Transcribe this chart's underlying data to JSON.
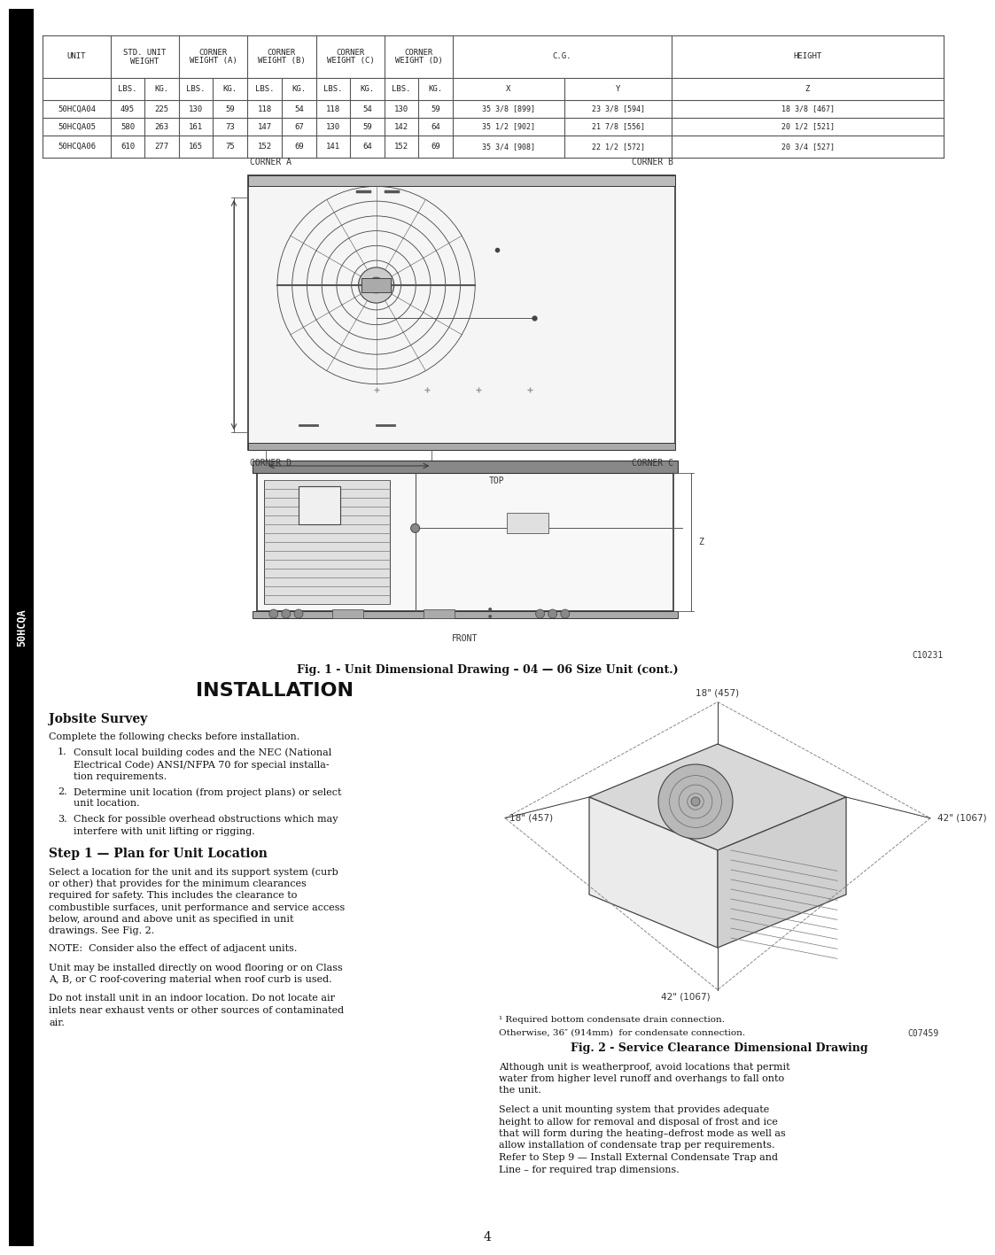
{
  "page_background": "#ffffff",
  "sidebar_text": "50HCQA",
  "data_rows": [
    [
      "50HCQA04",
      "495",
      "225",
      "130",
      "59",
      "118",
      "54",
      "118",
      "54",
      "130",
      "59",
      "35 3/8 [899]",
      "23 3/8 [594]",
      "18 3/8 [467]"
    ],
    [
      "50HCQA05",
      "580",
      "263",
      "161",
      "73",
      "147",
      "67",
      "130",
      "59",
      "142",
      "64",
      "35 1/2 [902]",
      "21 7/8 [556]",
      "20 1/2 [521]"
    ],
    [
      "50HCQA06",
      "610",
      "277",
      "165",
      "75",
      "152",
      "69",
      "141",
      "64",
      "152",
      "69",
      "35 3/4 [908]",
      "22 1/2 [572]",
      "20 3/4 [527]"
    ]
  ],
  "fig1_caption": "Fig. 1 - Unit Dimensional Drawing – 04 — 06 Size Unit (cont.)",
  "fig1_ref": "C10231",
  "top_label": "TOP",
  "front_label": "FRONT",
  "corner_a": "CORNER A",
  "corner_b": "CORNER B",
  "corner_c": "CORNER C",
  "corner_d": "CORNER D",
  "installation_title": "INSTALLATION",
  "jobsite_header": "Jobsite Survey",
  "jobsite_intro": "Complete the following checks before installation.",
  "jobsite_item1_line1": "Consult local building codes and the NEC (National",
  "jobsite_item1_line2": "Electrical Code) ANSI/NFPA 70 for special installa-",
  "jobsite_item1_line3": "tion requirements.",
  "jobsite_item2_line1": "Determine unit location (from project plans) or select",
  "jobsite_item2_line2": "unit location.",
  "jobsite_item3_line1": "Check for possible overhead obstructions which may",
  "jobsite_item3_line2": "interfere with unit lifting or rigging.",
  "step1_header": "Step 1 — Plan for Unit Location",
  "step1_p1_lines": [
    "Select a location for the unit and its support system (curb",
    "or other) that provides for the minimum clearances",
    "required for safety. This includes the clearance to",
    "combustible surfaces, unit performance and service access",
    "below, around and above unit as specified in unit",
    "drawings. See Fig. 2."
  ],
  "step1_note": "NOTE:  Consider also the effect of adjacent units.",
  "step1_p2_lines": [
    "Unit may be installed directly on wood flooring or on Class",
    "A, B, or C roof-covering material when roof curb is used."
  ],
  "step1_p3_lines": [
    "Do not install unit in an indoor location. Do not locate air",
    "inlets near exhaust vents or other sources of contaminated",
    "air."
  ],
  "fig2_caption": "Fig. 2 - Service Clearance Dimensional Drawing",
  "fig2_ref": "C07459",
  "fig2_note1": "¹ Required bottom condensate drain connection.",
  "fig2_note2": "Otherwise, 36″ (914mm)  for condensate connection.",
  "fig2_dim_top_left": "18\" (457)",
  "fig2_dim_top_right": "42\" (1067)",
  "fig2_dim_bot_left": "42\" (1067)",
  "fig2_dim_bot_right": "18\" (457)",
  "right_p1_lines": [
    "Although unit is weatherproof, avoid locations that permit",
    "water from higher level runoff and overhangs to fall onto",
    "the unit."
  ],
  "right_p2_lines": [
    "Select a unit mounting system that provides adequate",
    "height to allow for removal and disposal of frost and ice",
    "that will form during the heating–defrost mode as well as",
    "allow installation of condensate trap per requirements.",
    "Refer to Step 9 — Install External Condensate Trap and",
    "Line – for required trap dimensions."
  ],
  "page_number": "4"
}
